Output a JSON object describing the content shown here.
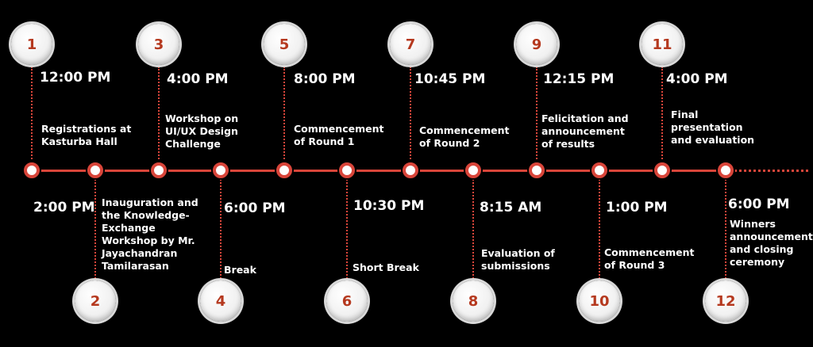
{
  "colors": {
    "background": "#000000",
    "timeline": "#d9453a",
    "badge_number": "#b5391f"
  },
  "events": [
    {
      "number": "1",
      "time": "12:00 PM",
      "description": "Registrations at\nKasturba Hall"
    },
    {
      "number": "2",
      "time": "2:00 PM",
      "description": "Inauguration and\nthe Knowledge-\nExchange\nWorkshop by Mr.\nJayachandran\nTamilarasan"
    },
    {
      "number": "3",
      "time": "4:00 PM",
      "description": "Workshop on\nUI/UX Design\nChallenge"
    },
    {
      "number": "4",
      "time": "6:00 PM",
      "description": "Break"
    },
    {
      "number": "5",
      "time": "8:00 PM",
      "description": "Commencement\nof Round 1"
    },
    {
      "number": "6",
      "time": "10:30 PM",
      "description": "Short Break"
    },
    {
      "number": "7",
      "time": "10:45 PM",
      "description": "Commencement\nof Round 2"
    },
    {
      "number": "8",
      "time": "8:15 AM",
      "description": "Evaluation of\nsubmissions"
    },
    {
      "number": "9",
      "time": "12:15 PM",
      "description": "Felicitation and\nannouncement\nof results"
    },
    {
      "number": "10",
      "time": "1:00 PM",
      "description": "Commencement\nof Round 3"
    },
    {
      "number": "11",
      "time": "4:00 PM",
      "description": "Final\npresentation\nand evaluation"
    },
    {
      "number": "12",
      "time": "6:00 PM",
      "description": "Winners\nannouncement\nand closing\nceremony"
    }
  ]
}
